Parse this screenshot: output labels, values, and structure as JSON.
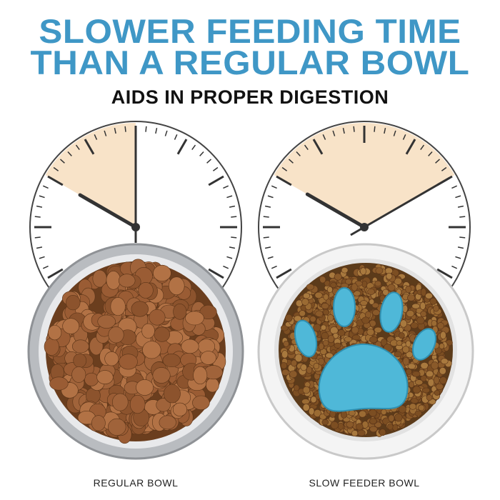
{
  "header": {
    "title_line1": "SLOWER FEEDING TIME",
    "title_line2": "THAN A REGULAR BOWL",
    "subtitle": "AIDS IN PROPER DIGESTION"
  },
  "comparison": [
    {
      "label": "REGULAR BOWL",
      "clock_time": "9:50-10:00",
      "bowl_type": "stainless steel"
    },
    {
      "label": "SLOW FEEDER BOWL",
      "clock_time": "9:50-10:10",
      "bowl_type": "white bowl with blue paw insert"
    }
  ],
  "colors": {
    "title": "#3f97c6",
    "shaded": "#f8e3c8",
    "paw": "#4fb8d8",
    "kibble": "#8a5530"
  }
}
